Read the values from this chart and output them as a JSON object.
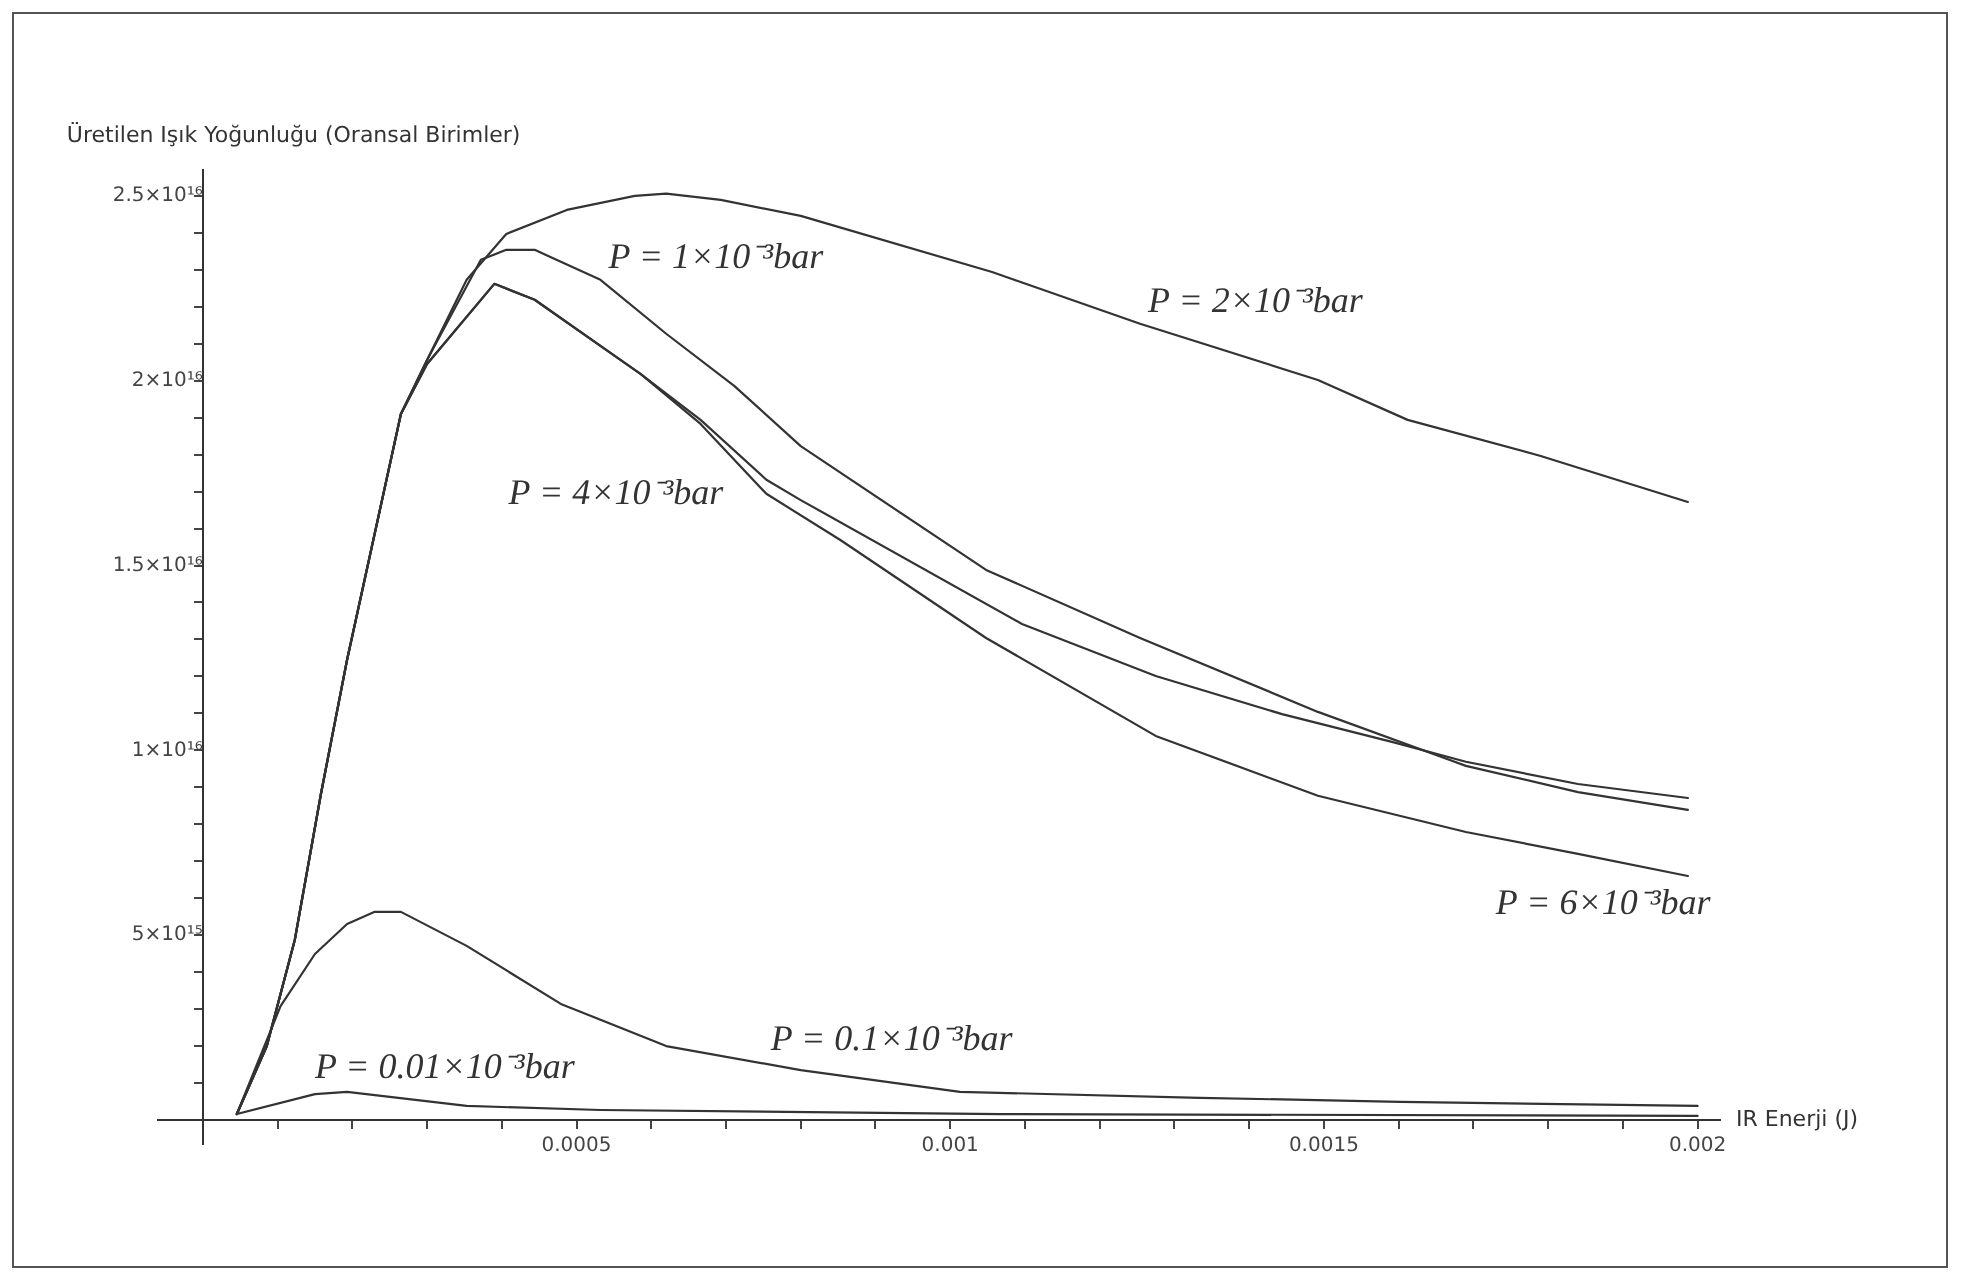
{
  "chart_data": {
    "type": "line",
    "ylabel": "Üretilen Işık Yoğunluğu (Oransal Birimler)",
    "xlabel": "IR Enerji (J)",
    "xlim": [
      -6e-05,
      0.00203
    ],
    "ylim": [
      -650000000000000.0,
      2.57e+16
    ],
    "xticks": [
      {
        "value": 0.0001,
        "label": null
      },
      {
        "value": 0.0002,
        "label": null
      },
      {
        "value": 0.0003,
        "label": null
      },
      {
        "value": 0.0004,
        "label": null
      },
      {
        "value": 0.0005,
        "label": "0.0005"
      },
      {
        "value": 0.0006,
        "label": null
      },
      {
        "value": 0.0007,
        "label": null
      },
      {
        "value": 0.0008,
        "label": null
      },
      {
        "value": 0.0009,
        "label": null
      },
      {
        "value": 0.001,
        "label": "0.001"
      },
      {
        "value": 0.0011,
        "label": null
      },
      {
        "value": 0.0012,
        "label": null
      },
      {
        "value": 0.0013,
        "label": null
      },
      {
        "value": 0.0014,
        "label": null
      },
      {
        "value": 0.0015,
        "label": "0.0015"
      },
      {
        "value": 0.0016,
        "label": null
      },
      {
        "value": 0.0017,
        "label": null
      },
      {
        "value": 0.0018,
        "label": null
      },
      {
        "value": 0.0019,
        "label": null
      },
      {
        "value": 0.002,
        "label": "0.002"
      }
    ],
    "yticks": [
      {
        "value": 1000000000000000.0,
        "label": null
      },
      {
        "value": 2000000000000000.0,
        "label": null
      },
      {
        "value": 3000000000000000.0,
        "label": null
      },
      {
        "value": 4000000000000000.0,
        "label": null
      },
      {
        "value": 5000000000000000.0,
        "label": "5×10¹⁵"
      },
      {
        "value": 6000000000000000.0,
        "label": null
      },
      {
        "value": 7000000000000000.0,
        "label": null
      },
      {
        "value": 8000000000000000.0,
        "label": null
      },
      {
        "value": 9000000000000000.0,
        "label": null
      },
      {
        "value": 1e+16,
        "label": "1×10¹⁶"
      },
      {
        "value": 1.1e+16,
        "label": null
      },
      {
        "value": 1.2e+16,
        "label": null
      },
      {
        "value": 1.3e+16,
        "label": null
      },
      {
        "value": 1.4e+16,
        "label": null
      },
      {
        "value": 1.5e+16,
        "label": "1.5×10¹⁶"
      },
      {
        "value": 1.6e+16,
        "label": null
      },
      {
        "value": 1.7e+16,
        "label": null
      },
      {
        "value": 1.8e+16,
        "label": null
      },
      {
        "value": 1.9e+16,
        "label": null
      },
      {
        "value": 2e+16,
        "label": "2×10¹⁶"
      },
      {
        "value": 2.1e+16,
        "label": null
      },
      {
        "value": 2.2e+16,
        "label": null
      },
      {
        "value": 2.3e+16,
        "label": null
      },
      {
        "value": 2.4e+16,
        "label": null
      },
      {
        "value": 2.5e+16,
        "label": "2.5×10¹⁶"
      }
    ],
    "grid": false,
    "legend": false,
    "marker": "none",
    "line_style": "solid",
    "series": [
      {
        "name": "P = 2×10⁻³bar",
        "color": "#333333",
        "x": [
          4.55e-05,
          8.56e-05,
          0.000123,
          0.000158,
          0.000193,
          0.000265,
          0.0003,
          0.000353,
          0.000406,
          0.000487,
          0.000578,
          0.00062,
          0.000693,
          0.0008,
          0.001056,
          0.001254,
          0.001492,
          0.001612,
          0.001789,
          0.001987
        ],
        "values": [
          160000000000000.0,
          2000000000000000.0,
          4870000000000000.0,
          8820000000000000.0,
          1.245e+16,
          1.91e+16,
          2.056e+16,
          2.273e+16,
          2.397e+16,
          2.462e+16,
          2.5e+16,
          2.506e+16,
          2.489e+16,
          2.446e+16,
          2.294e+16,
          2.154e+16,
          2.002e+16,
          1.894e+16,
          1.797e+16,
          1.672e+16
        ]
      },
      {
        "name": "P = 1×10⁻³bar",
        "color": "#333333",
        "x": [
          4.55e-05,
          8.56e-05,
          0.000123,
          0.000158,
          0.000193,
          0.000265,
          0.0003,
          0.000372,
          0.000406,
          0.000444,
          0.000532,
          0.00062,
          0.000711,
          0.0008,
          0.001048,
          0.001254,
          0.001492,
          0.00169,
          0.00184,
          0.001987
        ],
        "values": [
          160000000000000.0,
          2000000000000000.0,
          4870000000000000.0,
          8820000000000000.0,
          1.245e+16,
          1.91e+16,
          2.056e+16,
          2.327e+16,
          2.354e+16,
          2.354e+16,
          2.273e+16,
          2.127e+16,
          1.986e+16,
          1.823e+16,
          1.488e+16,
          1.304e+16,
          1.104e+16,
          9580000000000000.0,
          8870000000000000.0,
          8390000000000000.0
        ]
      },
      {
        "name": "P = 4×10⁻³bar",
        "color": "#333333",
        "x": [
          4.55e-05,
          8.56e-05,
          0.000123,
          0.000158,
          0.000193,
          0.000265,
          0.0003,
          0.00039,
          0.000444,
          0.000532,
          0.000586,
          0.000666,
          0.000754,
          0.0008,
          0.001096,
          0.001275,
          0.001444,
          0.001591,
          0.00169,
          0.00184,
          0.001987
        ],
        "values": [
          160000000000000.0,
          2000000000000000.0,
          4870000000000000.0,
          8820000000000000.0,
          1.245e+16,
          1.91e+16,
          2.045e+16,
          2.262e+16,
          2.219e+16,
          2.094e+16,
          2.018e+16,
          1.894e+16,
          1.732e+16,
          1.677e+16,
          1.342e+16,
          1.201e+16,
          1.098e+16,
          1.023e+16,
          9690000000000000.0,
          9090000000000000.0,
          8710000000000000.0
        ]
      },
      {
        "name": "P = 6×10⁻³bar",
        "color": "#333333",
        "x": [
          4.55e-05,
          8.56e-05,
          0.000123,
          0.000158,
          0.000193,
          0.000265,
          0.0003,
          0.00039,
          0.000444,
          0.000532,
          0.000586,
          0.000666,
          0.000754,
          0.000853,
          0.001048,
          0.001275,
          0.001492,
          0.00169,
          0.00184,
          0.001987
        ],
        "values": [
          160000000000000.0,
          2000000000000000.0,
          4870000000000000.0,
          8820000000000000.0,
          1.245e+16,
          1.91e+16,
          2.045e+16,
          2.262e+16,
          2.219e+16,
          2.094e+16,
          2.018e+16,
          1.883e+16,
          1.694e+16,
          1.569e+16,
          1.304e+16,
          1.039e+16,
          8770000000000000.0,
          7790000000000000.0,
          7200000000000000.0,
          6600000000000000.0
        ]
      },
      {
        "name": "P = 0.1×10⁻³bar",
        "color": "#333333",
        "x": [
          4.55e-05,
          0.000104,
          0.00015,
          0.000193,
          0.00023,
          0.000265,
          0.000353,
          0.000479,
          0.00062,
          0.0008,
          0.001013,
          0.001334,
          0.001602,
          0.002
        ],
        "values": [
          160000000000000.0,
          3080000000000000.0,
          4490000000000000.0,
          5300000000000000.0,
          5630000000000000.0,
          5630000000000000.0,
          4710000000000000.0,
          3140000000000000.0,
          2000000000000000.0,
          1350000000000000.0,
          760000000000000.0,
          600000000000000.0,
          490000000000000.0,
          380000000000000.0
        ]
      },
      {
        "name": "P = 0.01×10⁻³bar",
        "color": "#333333",
        "x": [
          4.55e-05,
          0.00015,
          0.000193,
          0.000353,
          0.000532,
          0.001067,
          0.002
        ],
        "values": [
          160000000000000.0,
          700000000000000.0,
          760000000000000.0,
          380000000000000.0,
          270000000000000.0,
          160000000000000.0,
          110000000000000.0
        ]
      }
    ]
  }
}
